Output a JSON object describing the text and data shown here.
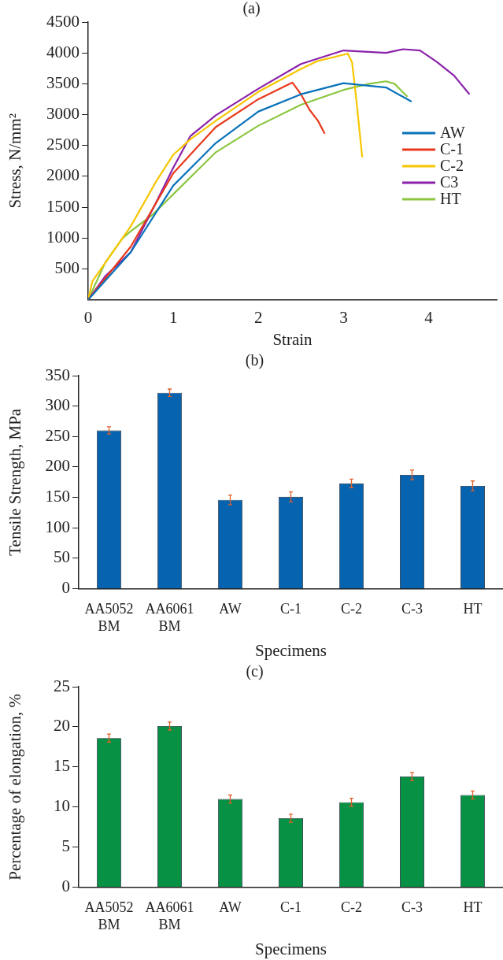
{
  "chart_data": [
    {
      "type": "line",
      "title": "(a)",
      "xlabel": "Strain",
      "ylabel": "Stress, N/mm²",
      "xlim": [
        0,
        4.8
      ],
      "xticks": [
        0,
        1,
        2,
        3,
        4
      ],
      "ylim": [
        0,
        4500
      ],
      "yticks": [
        500,
        1000,
        1500,
        2000,
        2500,
        3000,
        3500,
        4000,
        4500
      ],
      "legend": "right",
      "marker": "none",
      "line_style": "solid",
      "series": [
        {
          "name": "AW",
          "color": "#0a72ba",
          "x": [
            0,
            0.5,
            1,
            1.5,
            2,
            2.5,
            3,
            3.5,
            3.8
          ],
          "values": [
            0,
            770,
            1850,
            2540,
            3050,
            3330,
            3510,
            3440,
            3210
          ]
        },
        {
          "name": "C-1",
          "color": "#e8391b",
          "x": [
            0,
            0.5,
            1,
            1.5,
            2,
            2.4,
            2.5,
            2.6,
            2.7,
            2.78
          ],
          "values": [
            0,
            860,
            2050,
            2800,
            3250,
            3520,
            3330,
            3080,
            2900,
            2690
          ]
        },
        {
          "name": "C-2",
          "color": "#f7c600",
          "x": [
            0,
            0.05,
            0.5,
            0.8,
            1,
            1.2,
            1.5,
            2,
            2.5,
            2.7,
            3,
            3.05,
            3.1,
            3.15,
            3.22
          ],
          "values": [
            0,
            300,
            1190,
            1920,
            2350,
            2600,
            2900,
            3370,
            3740,
            3870,
            3970,
            3990,
            3850,
            3250,
            2310
          ]
        },
        {
          "name": "C3",
          "color": "#8a22aa",
          "x": [
            0,
            0.2,
            0.5,
            0.8,
            1,
            1.2,
            1.5,
            2,
            2.5,
            3,
            3.5,
            3.7,
            3.9,
            4.1,
            4.3,
            4.48
          ],
          "values": [
            0,
            380,
            770,
            1580,
            2140,
            2650,
            2990,
            3420,
            3820,
            4040,
            4000,
            4060,
            4040,
            3850,
            3630,
            3330
          ]
        },
        {
          "name": "HT",
          "color": "#8cc63f",
          "x": [
            0,
            0.2,
            0.4,
            0.5,
            0.75,
            1,
            1.5,
            2,
            2.5,
            3,
            3.3,
            3.5,
            3.6,
            3.75
          ],
          "values": [
            0,
            600,
            990,
            1110,
            1370,
            1710,
            2390,
            2820,
            3160,
            3400,
            3500,
            3540,
            3500,
            3290
          ]
        }
      ]
    },
    {
      "type": "bar",
      "title": "(b)",
      "xlabel": "Specimens",
      "ylabel": "Tensile Strength, MPa",
      "categories": [
        "AA5052\nBM",
        "AA6061\nBM",
        "AW",
        "C-1",
        "C-2",
        "C-3",
        "HT"
      ],
      "ylim": [
        0,
        350
      ],
      "yticks": [
        0,
        50,
        100,
        150,
        200,
        250,
        300,
        350
      ],
      "legend": false,
      "series": [
        {
          "color": "#0563b0",
          "values": [
            260,
            322,
            146,
            151,
            173,
            187,
            169
          ],
          "errors": [
            6,
            6,
            8,
            8,
            7,
            8,
            8
          ]
        }
      ]
    },
    {
      "type": "bar",
      "title": "(c)",
      "xlabel": "Specimens",
      "ylabel": "Percentage of elongation, %",
      "categories": [
        "AA5052\nBM",
        "AA6061\nBM",
        "AW",
        "C-1",
        "C-2",
        "C-3",
        "HT"
      ],
      "ylim": [
        0,
        25
      ],
      "yticks": [
        0,
        5,
        10,
        15,
        20,
        25
      ],
      "legend": false,
      "series": [
        {
          "color": "#079144",
          "values": [
            18.6,
            20.1,
            11.0,
            8.6,
            10.6,
            13.8,
            11.5
          ],
          "errors": [
            0.5,
            0.5,
            0.5,
            0.5,
            0.5,
            0.5,
            0.5
          ]
        }
      ]
    }
  ]
}
